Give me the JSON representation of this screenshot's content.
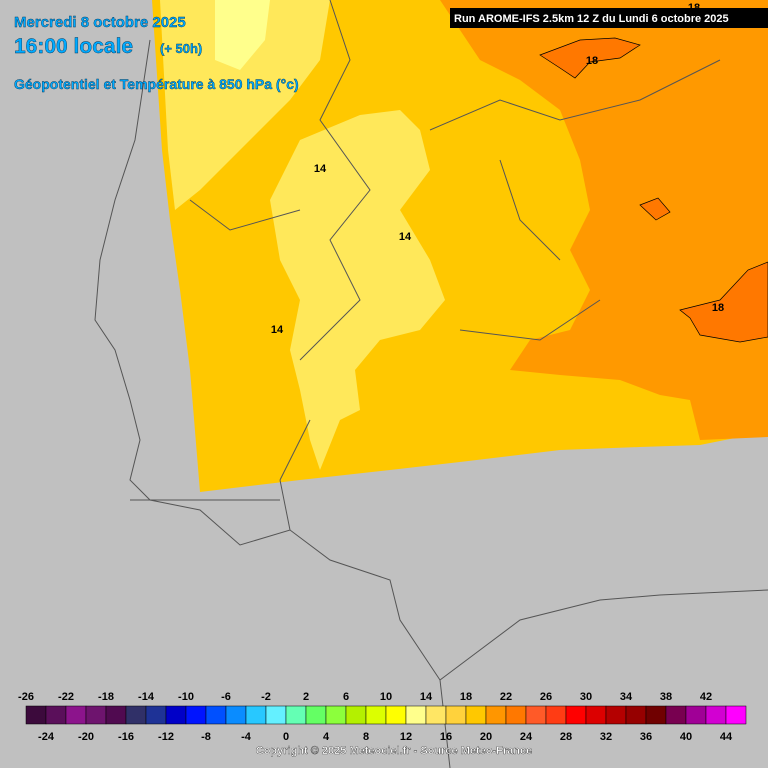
{
  "header": {
    "date": "Mercredi 8 octobre 2025",
    "time": "16:00 locale",
    "lead": "(+ 50h)",
    "field": "Géopotentiel et Température à 850 hPa (°c)",
    "run": "Run AROME-IFS 2.5km 12 Z du Lundi 6 octobre 2025"
  },
  "contour_labels": [
    "14",
    "14",
    "14",
    "18",
    "18",
    "18"
  ],
  "legend": {
    "values": [
      -26,
      -24,
      -22,
      -20,
      -18,
      -16,
      -14,
      -12,
      -10,
      -8,
      -6,
      -4,
      -2,
      0,
      2,
      4,
      6,
      8,
      10,
      12,
      14,
      16,
      18,
      20,
      22,
      24,
      26,
      28,
      30,
      32,
      34,
      36,
      38,
      40,
      42,
      44
    ],
    "colors": [
      "#3c0a3c",
      "#5a0f5a",
      "#8c148c",
      "#6e146e",
      "#500a50",
      "#303068",
      "#1e3296",
      "#0000c8",
      "#0014ff",
      "#0050ff",
      "#0a8cff",
      "#28c8ff",
      "#64f0ff",
      "#64ffb4",
      "#64ff64",
      "#8cff3c",
      "#b4f000",
      "#dcff00",
      "#ffff00",
      "#ffff8c",
      "#ffe664",
      "#ffd23c",
      "#ffc800",
      "#ff9600",
      "#ff7800",
      "#ff5a28",
      "#ff3c14",
      "#ff0000",
      "#dc0000",
      "#b40000",
      "#960000",
      "#700000",
      "#780050",
      "#a00096",
      "#d200d2",
      "#ff00ff"
    ]
  },
  "copyright": "Copyright © 2025 Meteociel.fr - Source Meteo-France"
}
